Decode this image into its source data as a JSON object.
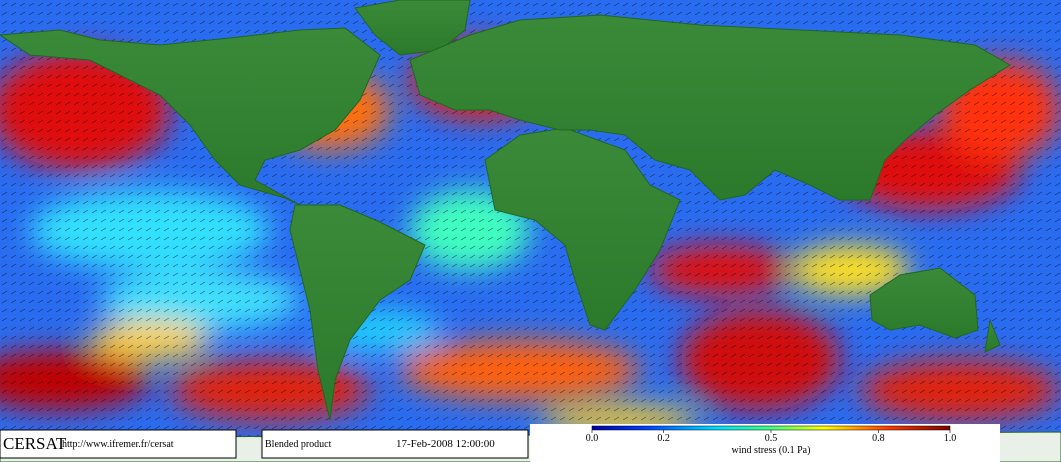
{
  "footer": {
    "brand": "CERSAT",
    "url": "http://www.ifremer.fr/cersat",
    "product": "Blended product",
    "date": "17-Feb-2008 12:00:00"
  },
  "colorbar": {
    "lim": [
      0,
      1
    ],
    "ticks": [
      {
        "value": 0,
        "label": "0.0"
      },
      {
        "value": 0.2,
        "label": "0.2"
      },
      {
        "value": 0.5,
        "label": "0.5"
      },
      {
        "value": 0.8,
        "label": "0.8"
      },
      {
        "value": 1,
        "label": "1.0"
      }
    ],
    "label": "wind stress (0.1 Pa)"
  }
}
